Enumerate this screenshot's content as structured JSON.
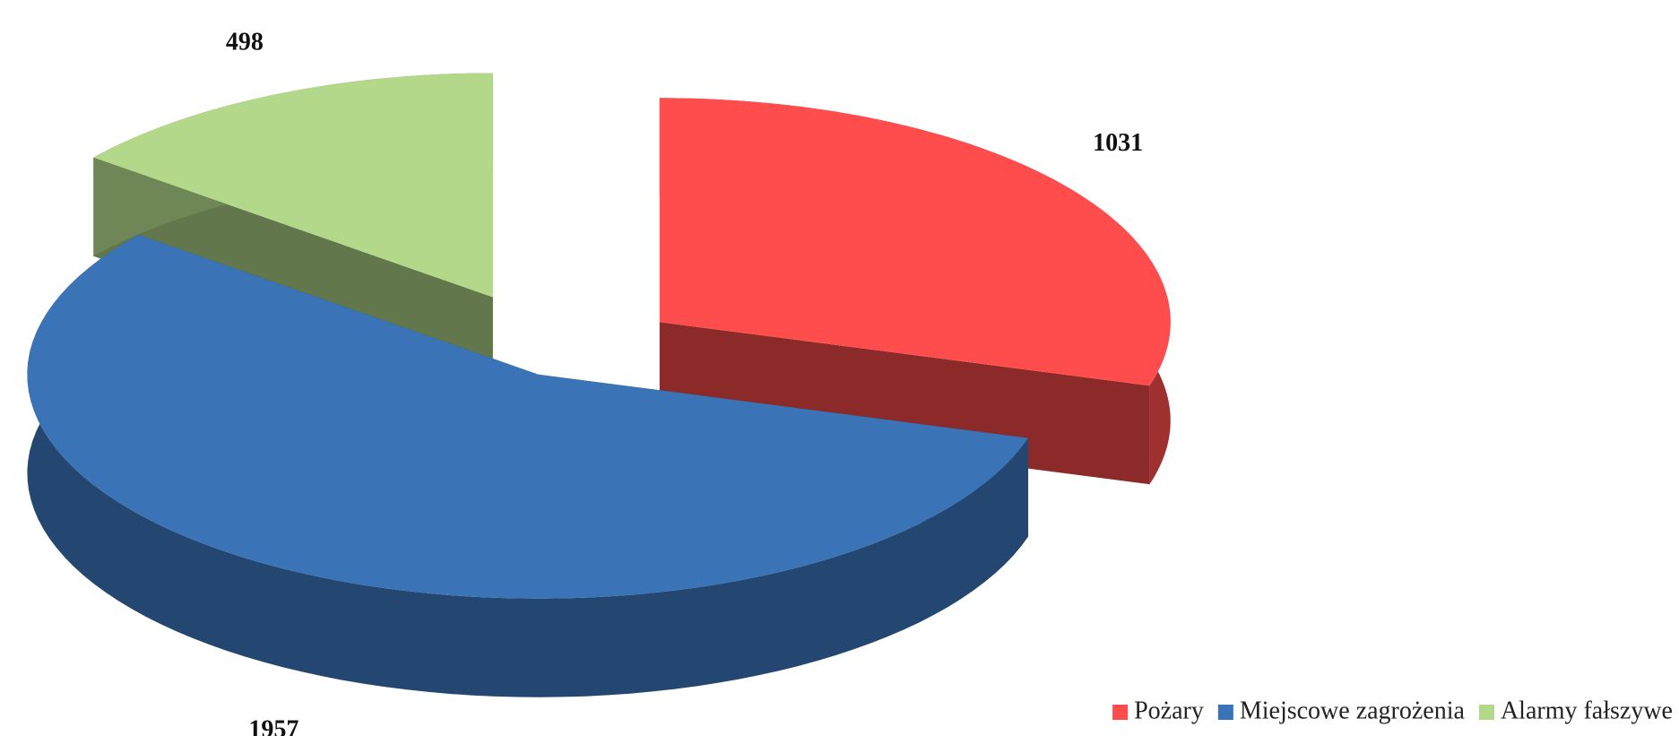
{
  "chart_data": {
    "type": "pie3d",
    "categories": [
      "Pożary",
      "Miejscowe zagrożenia",
      "Alarmy fałszywe"
    ],
    "values": [
      1031,
      1957,
      498
    ],
    "colors": [
      "#ff4d4d",
      "#3a73b6",
      "#b3d88a"
    ],
    "legend": "bottom-right"
  }
}
